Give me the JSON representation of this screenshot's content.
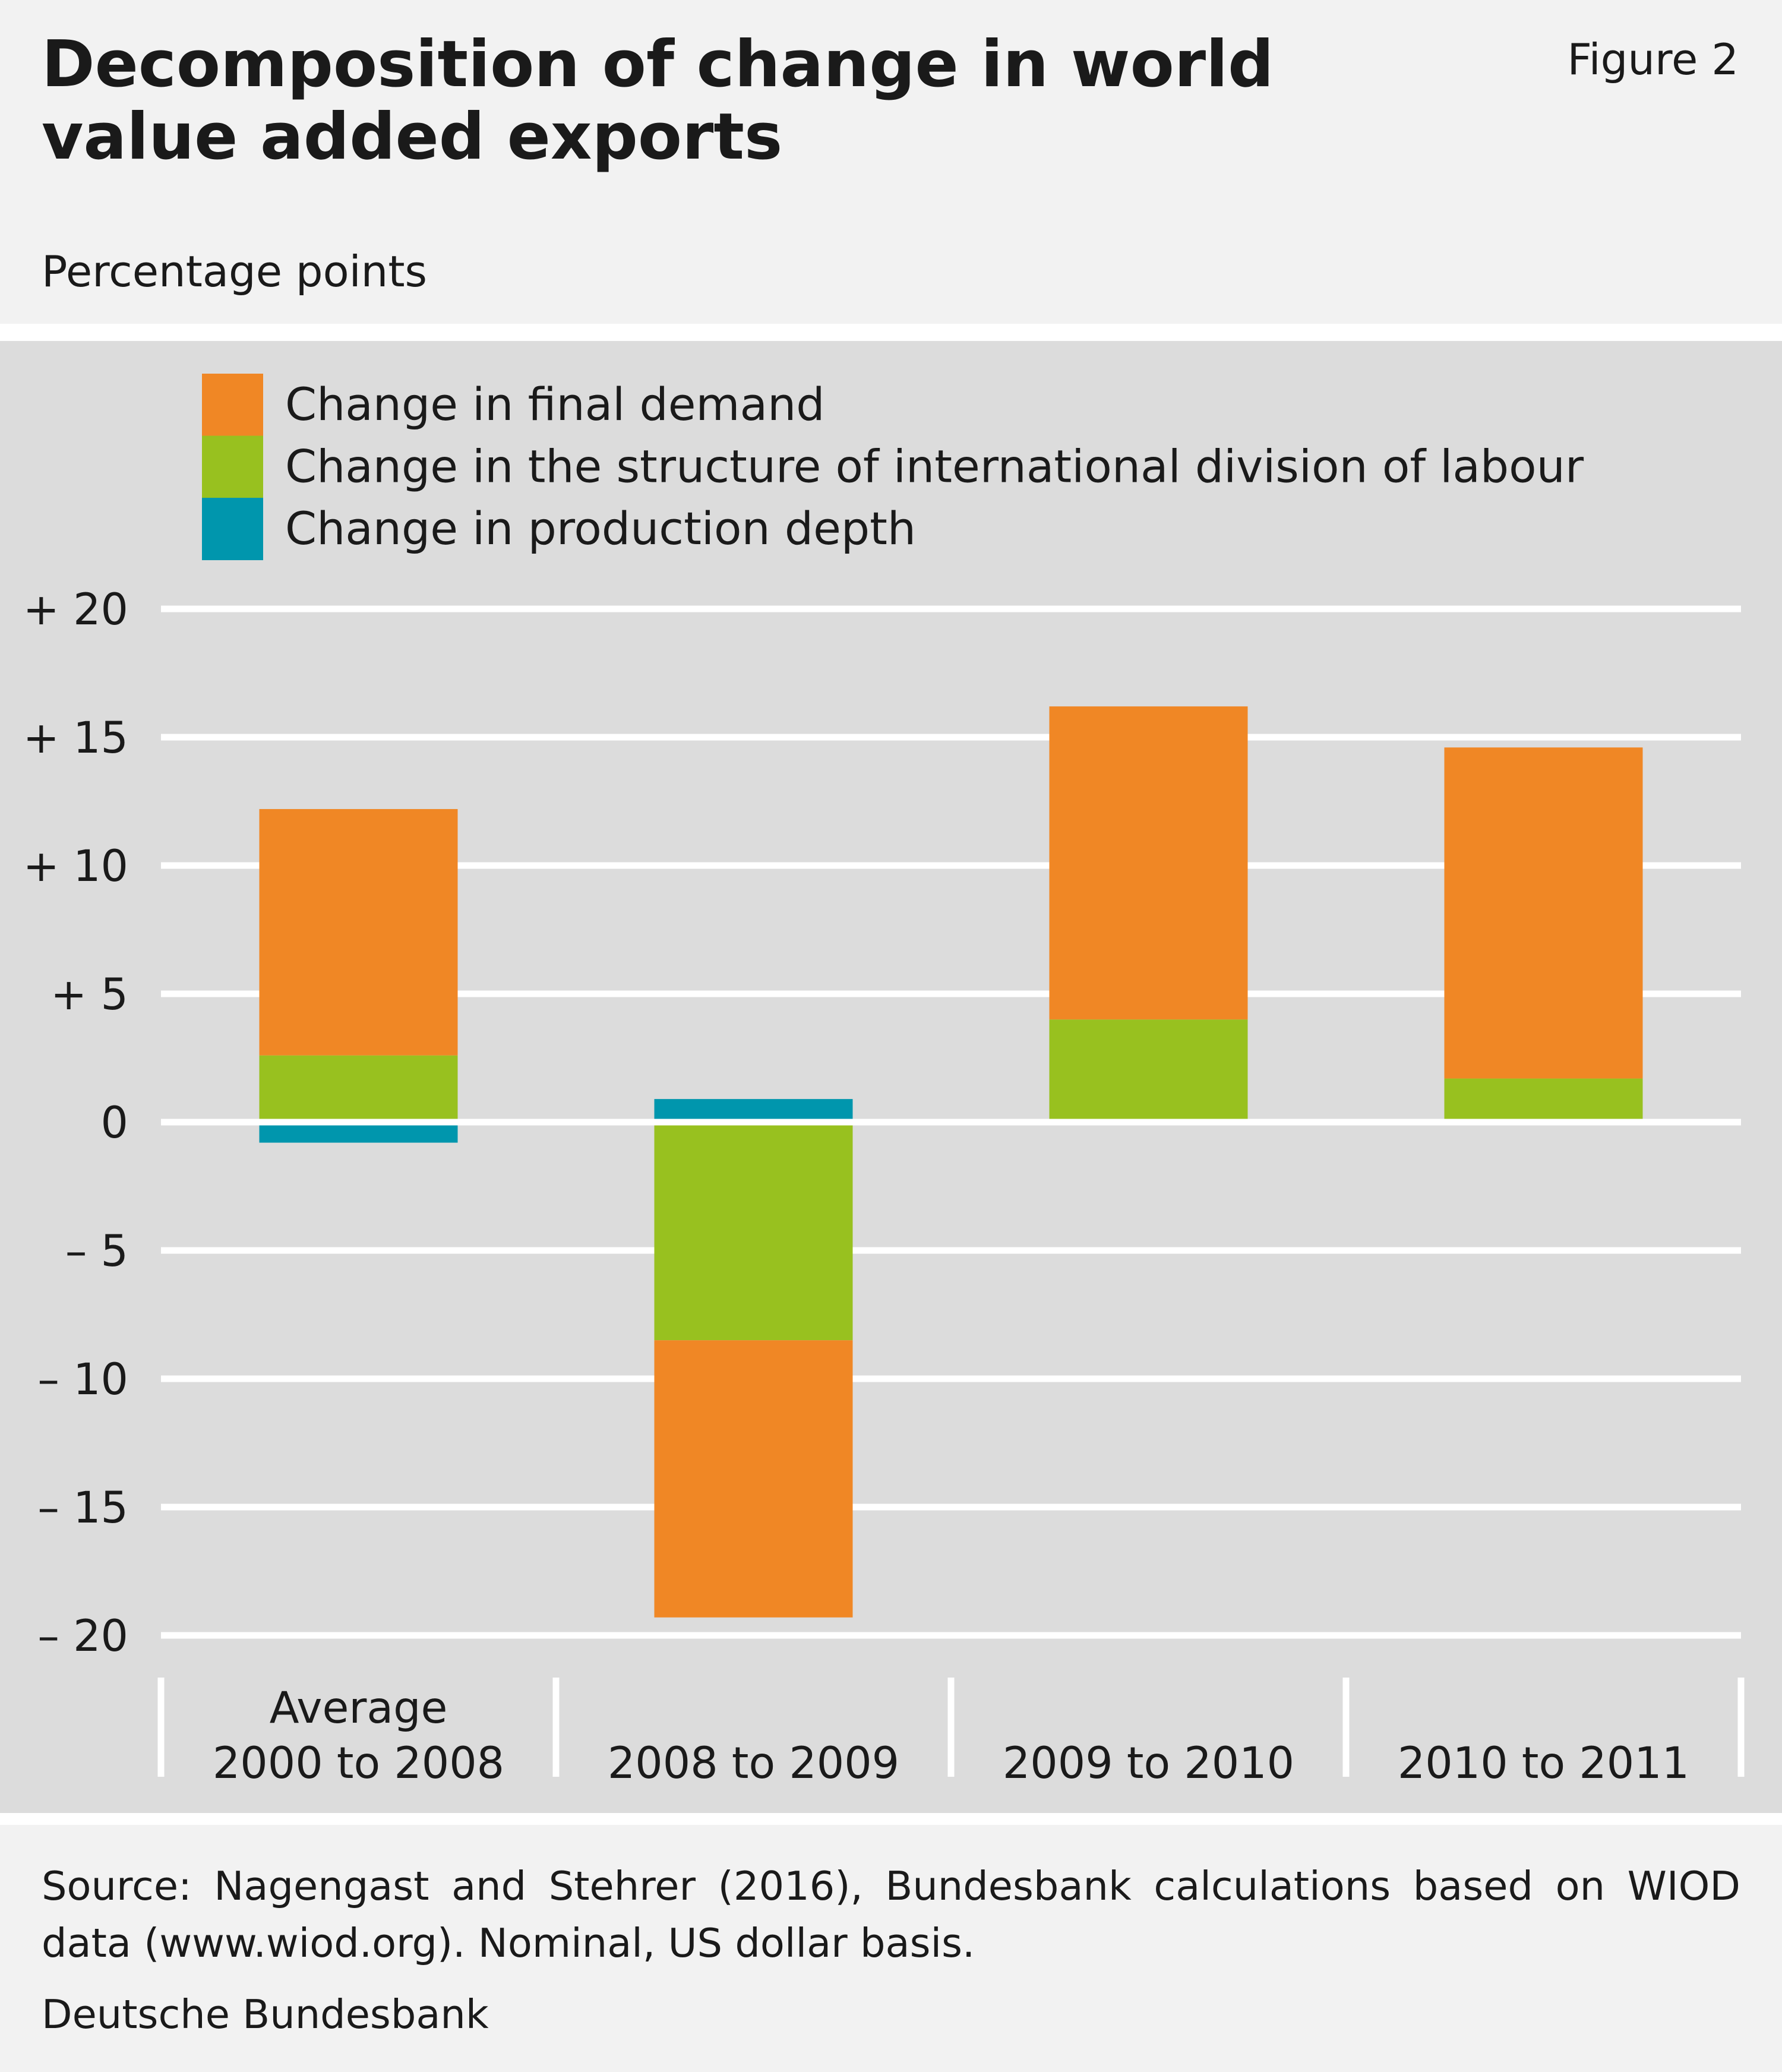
{
  "header": {
    "title": "Decomposition of change in world value added exports",
    "figure_label": "Figure 2",
    "unit": "Percentage points"
  },
  "footer": {
    "source": "Source: Nagengast and Stehrer (2016), Bundesbank calculations based on WIOD data (www.wiod.org). Nominal, US dollar basis.",
    "publisher": "Deutsche Bundesbank"
  },
  "chart_data": {
    "type": "bar",
    "stacked": true,
    "title": "Decomposition of change in world value added exports",
    "ylabel": "Percentage points",
    "ylim": [
      -20,
      20
    ],
    "yticks": [
      20,
      15,
      10,
      5,
      0,
      -5,
      -10,
      -15,
      -20
    ],
    "ytick_labels": [
      "+ 20",
      "+ 15",
      "+ 10",
      "+   5",
      "0",
      "–   5",
      "– 10",
      "– 15",
      "– 20"
    ],
    "grid": true,
    "legend_position": "top-left",
    "categories": [
      [
        "Average",
        "2000 to 2008"
      ],
      [
        "2008 to 2009"
      ],
      [
        "2009 to 2010"
      ],
      [
        "2010 to 2011"
      ]
    ],
    "series": [
      {
        "name": "Change in final demand",
        "color": "#f08725",
        "values": [
          9.6,
          -10.8,
          12.2,
          12.9
        ]
      },
      {
        "name": "Change in the structure of international division of labour",
        "color": "#98c11f",
        "values": [
          2.6,
          -8.5,
          4.0,
          1.7
        ]
      },
      {
        "name": "Change in production depth",
        "color": "#0096ad",
        "values": [
          -0.8,
          0.9,
          -0.1,
          0
        ]
      }
    ],
    "stack_order": [
      1,
      0,
      2
    ]
  }
}
